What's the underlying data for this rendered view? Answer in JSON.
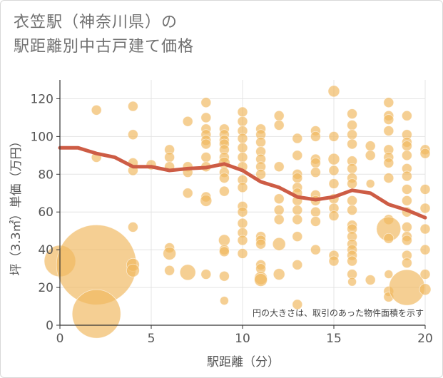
{
  "title_line1": "衣笠駅（神奈川県）の",
  "title_line2": "駅距離別中古戸建て価格",
  "chart_data": {
    "type": "scatter",
    "title": "衣笠駅（神奈川県）の駅距離別中古戸建て価格",
    "xlabel": "駅距離（分）",
    "ylabel": "坪（3.3㎡）単価（万円）",
    "xlim": [
      0,
      20
    ],
    "ylim": [
      0,
      130
    ],
    "xticks": [
      0,
      5,
      10,
      15,
      20
    ],
    "yticks": [
      0,
      20,
      40,
      60,
      80,
      100,
      120
    ],
    "note": "円の大きさは、取引のあった物件面積を示す",
    "colors": {
      "bubble": "#f0b860",
      "line": "#cd5c45"
    },
    "trend_line": {
      "x": [
        0,
        1,
        2,
        3,
        4,
        5,
        6,
        7,
        8,
        9,
        10,
        11,
        12,
        13,
        14,
        15,
        16,
        17,
        18,
        19,
        20
      ],
      "y": [
        94,
        94,
        91,
        89,
        84,
        84,
        82,
        83,
        83.5,
        85.5,
        82,
        76,
        73,
        68,
        66.5,
        68,
        71.5,
        70,
        64,
        61,
        57
      ]
    },
    "points": [
      {
        "x": 0,
        "y": 34,
        "s": 22
      },
      {
        "x": 2,
        "y": 32,
        "s": 56
      },
      {
        "x": 2,
        "y": 6,
        "s": 34
      },
      {
        "x": 2,
        "y": 114,
        "s": 7
      },
      {
        "x": 2,
        "y": 89,
        "s": 7
      },
      {
        "x": 4,
        "y": 116,
        "s": 7
      },
      {
        "x": 4,
        "y": 101,
        "s": 7
      },
      {
        "x": 4,
        "y": 86,
        "s": 7
      },
      {
        "x": 4,
        "y": 82,
        "s": 7
      },
      {
        "x": 4,
        "y": 52,
        "s": 7
      },
      {
        "x": 4,
        "y": 32,
        "s": 9
      },
      {
        "x": 4,
        "y": 29,
        "s": 9
      },
      {
        "x": 5,
        "y": 85,
        "s": 7
      },
      {
        "x": 6,
        "y": 93,
        "s": 7
      },
      {
        "x": 6,
        "y": 89,
        "s": 7
      },
      {
        "x": 6,
        "y": 84,
        "s": 7
      },
      {
        "x": 6,
        "y": 41,
        "s": 7
      },
      {
        "x": 6,
        "y": 38,
        "s": 9
      },
      {
        "x": 6,
        "y": 29,
        "s": 7
      },
      {
        "x": 7,
        "y": 108,
        "s": 7
      },
      {
        "x": 7,
        "y": 84,
        "s": 7
      },
      {
        "x": 7,
        "y": 81,
        "s": 7
      },
      {
        "x": 7,
        "y": 70,
        "s": 7
      },
      {
        "x": 7,
        "y": 28,
        "s": 11
      },
      {
        "x": 8,
        "y": 118,
        "s": 7
      },
      {
        "x": 8,
        "y": 110,
        "s": 7
      },
      {
        "x": 8,
        "y": 104,
        "s": 7
      },
      {
        "x": 8,
        "y": 101,
        "s": 7
      },
      {
        "x": 8,
        "y": 98,
        "s": 7
      },
      {
        "x": 8,
        "y": 96,
        "s": 7
      },
      {
        "x": 8,
        "y": 89,
        "s": 7
      },
      {
        "x": 8,
        "y": 84,
        "s": 7
      },
      {
        "x": 8,
        "y": 68,
        "s": 7
      },
      {
        "x": 8,
        "y": 66,
        "s": 8
      },
      {
        "x": 8,
        "y": 27,
        "s": 7
      },
      {
        "x": 9,
        "y": 104,
        "s": 7
      },
      {
        "x": 9,
        "y": 101,
        "s": 7
      },
      {
        "x": 9,
        "y": 98,
        "s": 7
      },
      {
        "x": 9,
        "y": 96,
        "s": 7
      },
      {
        "x": 9,
        "y": 93,
        "s": 7
      },
      {
        "x": 9,
        "y": 89,
        "s": 7
      },
      {
        "x": 9,
        "y": 86,
        "s": 8
      },
      {
        "x": 9,
        "y": 81,
        "s": 7
      },
      {
        "x": 9,
        "y": 78,
        "s": 7
      },
      {
        "x": 9,
        "y": 71,
        "s": 7
      },
      {
        "x": 9,
        "y": 45,
        "s": 8
      },
      {
        "x": 9,
        "y": 40,
        "s": 7
      },
      {
        "x": 9,
        "y": 39,
        "s": 7
      },
      {
        "x": 9,
        "y": 26,
        "s": 7
      },
      {
        "x": 9,
        "y": 13,
        "s": 6
      },
      {
        "x": 10,
        "y": 113,
        "s": 7
      },
      {
        "x": 10,
        "y": 108,
        "s": 7
      },
      {
        "x": 10,
        "y": 103,
        "s": 7
      },
      {
        "x": 10,
        "y": 99,
        "s": 7
      },
      {
        "x": 10,
        "y": 94,
        "s": 7
      },
      {
        "x": 10,
        "y": 89,
        "s": 7
      },
      {
        "x": 10,
        "y": 84,
        "s": 7
      },
      {
        "x": 10,
        "y": 77,
        "s": 7
      },
      {
        "x": 10,
        "y": 73,
        "s": 7
      },
      {
        "x": 10,
        "y": 63,
        "s": 7
      },
      {
        "x": 10,
        "y": 60,
        "s": 7
      },
      {
        "x": 10,
        "y": 54,
        "s": 7
      },
      {
        "x": 10,
        "y": 49,
        "s": 7
      },
      {
        "x": 10,
        "y": 45,
        "s": 7
      },
      {
        "x": 10,
        "y": 38,
        "s": 7
      },
      {
        "x": 11,
        "y": 104,
        "s": 7
      },
      {
        "x": 11,
        "y": 101,
        "s": 7
      },
      {
        "x": 11,
        "y": 97,
        "s": 7
      },
      {
        "x": 11,
        "y": 92,
        "s": 7
      },
      {
        "x": 11,
        "y": 88,
        "s": 7
      },
      {
        "x": 11,
        "y": 84,
        "s": 7
      },
      {
        "x": 11,
        "y": 80,
        "s": 7
      },
      {
        "x": 11,
        "y": 47,
        "s": 7
      },
      {
        "x": 11,
        "y": 45,
        "s": 7
      },
      {
        "x": 11,
        "y": 43,
        "s": 7
      },
      {
        "x": 11,
        "y": 32,
        "s": 7
      },
      {
        "x": 11,
        "y": 30,
        "s": 7
      },
      {
        "x": 11,
        "y": 25,
        "s": 9
      },
      {
        "x": 11,
        "y": 24,
        "s": 9
      },
      {
        "x": 12,
        "y": 111,
        "s": 7
      },
      {
        "x": 12,
        "y": 106,
        "s": 7
      },
      {
        "x": 12,
        "y": 84,
        "s": 7
      },
      {
        "x": 12,
        "y": 67,
        "s": 7
      },
      {
        "x": 12,
        "y": 61,
        "s": 7
      },
      {
        "x": 12,
        "y": 56,
        "s": 7
      },
      {
        "x": 12,
        "y": 43,
        "s": 9
      },
      {
        "x": 12,
        "y": 27,
        "s": 8
      },
      {
        "x": 13,
        "y": 99,
        "s": 7
      },
      {
        "x": 13,
        "y": 90,
        "s": 7
      },
      {
        "x": 13,
        "y": 80,
        "s": 7
      },
      {
        "x": 13,
        "y": 78,
        "s": 7
      },
      {
        "x": 13,
        "y": 73,
        "s": 7
      },
      {
        "x": 13,
        "y": 70,
        "s": 7
      },
      {
        "x": 13,
        "y": 66,
        "s": 7
      },
      {
        "x": 13,
        "y": 61,
        "s": 7
      },
      {
        "x": 13,
        "y": 56,
        "s": 7
      },
      {
        "x": 13,
        "y": 47,
        "s": 7
      },
      {
        "x": 13,
        "y": 32,
        "s": 7
      },
      {
        "x": 13,
        "y": 11,
        "s": 7
      },
      {
        "x": 14,
        "y": 103,
        "s": 7
      },
      {
        "x": 14,
        "y": 100,
        "s": 7
      },
      {
        "x": 14,
        "y": 88,
        "s": 7
      },
      {
        "x": 14,
        "y": 86,
        "s": 7
      },
      {
        "x": 14,
        "y": 81,
        "s": 7
      },
      {
        "x": 14,
        "y": 69,
        "s": 7
      },
      {
        "x": 14,
        "y": 66,
        "s": 7
      },
      {
        "x": 14,
        "y": 60,
        "s": 7
      },
      {
        "x": 14,
        "y": 55,
        "s": 7
      },
      {
        "x": 14,
        "y": 40,
        "s": 7
      },
      {
        "x": 15,
        "y": 124,
        "s": 8
      },
      {
        "x": 15,
        "y": 100,
        "s": 7
      },
      {
        "x": 15,
        "y": 88,
        "s": 8
      },
      {
        "x": 15,
        "y": 82,
        "s": 7
      },
      {
        "x": 15,
        "y": 75,
        "s": 7
      },
      {
        "x": 15,
        "y": 67,
        "s": 7
      },
      {
        "x": 15,
        "y": 62,
        "s": 7
      },
      {
        "x": 15,
        "y": 58,
        "s": 7
      },
      {
        "x": 15,
        "y": 37,
        "s": 7
      },
      {
        "x": 15,
        "y": 34,
        "s": 7
      },
      {
        "x": 16,
        "y": 112,
        "s": 7
      },
      {
        "x": 16,
        "y": 106,
        "s": 7
      },
      {
        "x": 16,
        "y": 101,
        "s": 7
      },
      {
        "x": 16,
        "y": 96,
        "s": 7
      },
      {
        "x": 16,
        "y": 87,
        "s": 7
      },
      {
        "x": 16,
        "y": 83,
        "s": 7
      },
      {
        "x": 16,
        "y": 78,
        "s": 7
      },
      {
        "x": 16,
        "y": 75,
        "s": 7
      },
      {
        "x": 16,
        "y": 66,
        "s": 7
      },
      {
        "x": 16,
        "y": 61,
        "s": 7
      },
      {
        "x": 16,
        "y": 53,
        "s": 7
      },
      {
        "x": 16,
        "y": 51,
        "s": 7
      },
      {
        "x": 16,
        "y": 47,
        "s": 7
      },
      {
        "x": 16,
        "y": 43,
        "s": 7
      },
      {
        "x": 16,
        "y": 40,
        "s": 7
      },
      {
        "x": 16,
        "y": 37,
        "s": 7
      },
      {
        "x": 16,
        "y": 34,
        "s": 7
      },
      {
        "x": 16,
        "y": 27,
        "s": 7
      },
      {
        "x": 16,
        "y": 23,
        "s": 6
      },
      {
        "x": 17,
        "y": 95,
        "s": 7
      },
      {
        "x": 17,
        "y": 90,
        "s": 7
      },
      {
        "x": 17,
        "y": 75,
        "s": 6
      },
      {
        "x": 17,
        "y": 24,
        "s": 7
      },
      {
        "x": 18,
        "y": 118,
        "s": 7
      },
      {
        "x": 18,
        "y": 111,
        "s": 7
      },
      {
        "x": 18,
        "y": 109,
        "s": 7
      },
      {
        "x": 18,
        "y": 103,
        "s": 7
      },
      {
        "x": 18,
        "y": 93,
        "s": 7
      },
      {
        "x": 18,
        "y": 89,
        "s": 7
      },
      {
        "x": 18,
        "y": 86,
        "s": 7
      },
      {
        "x": 18,
        "y": 78,
        "s": 7
      },
      {
        "x": 18,
        "y": 56,
        "s": 7
      },
      {
        "x": 18,
        "y": 51,
        "s": 17
      },
      {
        "x": 18,
        "y": 46,
        "s": 7
      },
      {
        "x": 18,
        "y": 27,
        "s": 6
      },
      {
        "x": 18,
        "y": 18,
        "s": 7
      },
      {
        "x": 18,
        "y": 15,
        "s": 7
      },
      {
        "x": 19,
        "y": 111,
        "s": 7
      },
      {
        "x": 19,
        "y": 101,
        "s": 7
      },
      {
        "x": 19,
        "y": 97,
        "s": 7
      },
      {
        "x": 19,
        "y": 95,
        "s": 7
      },
      {
        "x": 19,
        "y": 90,
        "s": 7
      },
      {
        "x": 19,
        "y": 83,
        "s": 7
      },
      {
        "x": 19,
        "y": 79,
        "s": 7
      },
      {
        "x": 19,
        "y": 72,
        "s": 7
      },
      {
        "x": 19,
        "y": 66,
        "s": 7
      },
      {
        "x": 19,
        "y": 60,
        "s": 7
      },
      {
        "x": 19,
        "y": 52,
        "s": 7
      },
      {
        "x": 19,
        "y": 47,
        "s": 7
      },
      {
        "x": 19,
        "y": 45,
        "s": 7
      },
      {
        "x": 19,
        "y": 37,
        "s": 7
      },
      {
        "x": 19,
        "y": 33,
        "s": 7
      },
      {
        "x": 19,
        "y": 20,
        "s": 25
      },
      {
        "x": 20,
        "y": 93,
        "s": 7
      },
      {
        "x": 20,
        "y": 91,
        "s": 7
      },
      {
        "x": 20,
        "y": 72,
        "s": 7
      },
      {
        "x": 20,
        "y": 62,
        "s": 7
      },
      {
        "x": 20,
        "y": 51,
        "s": 7
      },
      {
        "x": 20,
        "y": 40,
        "s": 7
      },
      {
        "x": 20,
        "y": 27,
        "s": 7
      },
      {
        "x": 20,
        "y": 19,
        "s": 8
      }
    ]
  }
}
